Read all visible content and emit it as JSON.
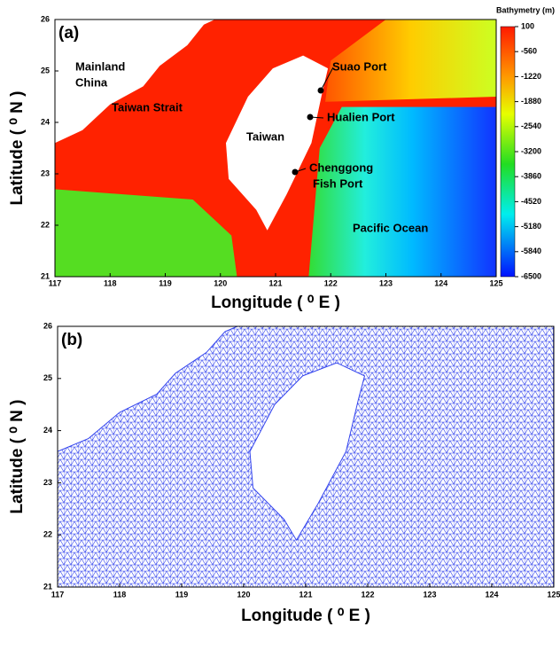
{
  "panels": [
    {
      "label": "(a)",
      "xlabel": "Longitude ( ⁰ E )",
      "ylabel": "Latitude ( ⁰ N )",
      "xlim": [
        117,
        125
      ],
      "xticks": [
        117,
        118,
        119,
        120,
        121,
        122,
        123,
        124,
        125
      ],
      "ylim": [
        21,
        26
      ],
      "yticks": [
        21,
        22,
        23,
        24,
        25,
        26
      ],
      "annotations": [
        "Mainland",
        "China",
        "Taiwan Strait",
        "Taiwan",
        "Suao Port",
        "Hualien Port",
        "Chenggong",
        "Fish Port",
        "Pacific Ocean"
      ],
      "colorbar": {
        "title": "Bathymetry (m)",
        "lim": [
          100,
          -6500
        ],
        "ticks": [
          100,
          -560,
          -1220,
          -1880,
          -2540,
          -3200,
          -3860,
          -4520,
          -5180,
          -5840,
          -6500
        ]
      }
    },
    {
      "label": "(b)",
      "xlabel": "Longitude ( ⁰ E )",
      "ylabel": "Latitude ( ⁰ N )",
      "xlim": [
        117,
        125
      ],
      "xticks": [
        117,
        118,
        119,
        120,
        121,
        122,
        123,
        124,
        125
      ],
      "ylim": [
        21,
        26
      ],
      "yticks": [
        21,
        22,
        23,
        24,
        25,
        26
      ]
    }
  ]
}
